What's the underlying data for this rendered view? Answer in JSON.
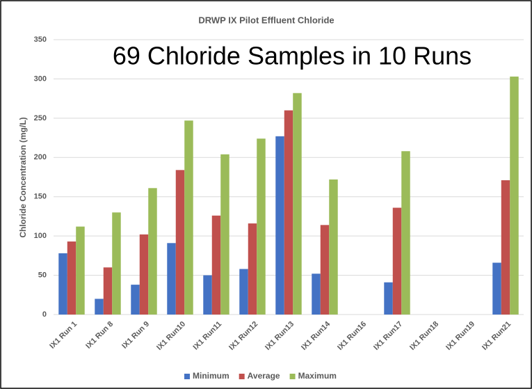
{
  "chart_data": {
    "type": "bar",
    "title": "DRWP IX Pilot Effluent Chloride",
    "annotation": "69 Chloride Samples in 10 Runs",
    "y_label": "Chloride Concentration (mg/L)",
    "categories": [
      "IX1 Run 1",
      "IX1 Run 8",
      "IX1 Run 9",
      "IX1 Run10",
      "IX1 Run11",
      "IX1 Run12",
      "IX1 Run13",
      "IX1 Run14",
      "IX1 Run16",
      "IX1 Run17",
      "IX1 Run18",
      "IX1 Run19",
      "IX1 Run21"
    ],
    "series": [
      {
        "name": "Minimum",
        "color": "#4472c4",
        "values": [
          78,
          20,
          38,
          91,
          50,
          58,
          227,
          52,
          null,
          41,
          null,
          null,
          66
        ]
      },
      {
        "name": "Average",
        "color": "#c0504d",
        "values": [
          93,
          60,
          102,
          184,
          126,
          116,
          260,
          114,
          null,
          136,
          null,
          null,
          171
        ]
      },
      {
        "name": "Maximum",
        "color": "#9bbb59",
        "values": [
          112,
          130,
          161,
          247,
          204,
          224,
          282,
          172,
          null,
          208,
          null,
          null,
          303
        ]
      }
    ],
    "ylim": [
      0,
      350
    ],
    "yticks": [
      0,
      50,
      100,
      150,
      200,
      250,
      300,
      350
    ],
    "grid": true,
    "legend": "bottom"
  }
}
